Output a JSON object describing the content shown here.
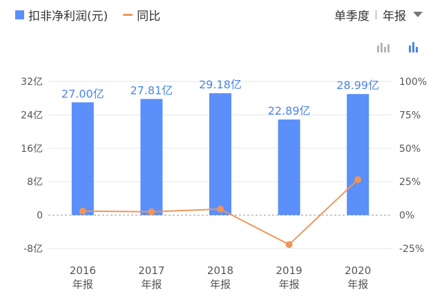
{
  "legend": {
    "bar_label": "扣非净利润(元)",
    "line_label": "同比"
  },
  "period": {
    "option_quarter": "单季度",
    "option_annual": "年报"
  },
  "icons": {
    "toggle_a": "bar-chart-outline-icon",
    "toggle_b": "bar-chart-icon",
    "dropdown": "caret-down-icon"
  },
  "colors": {
    "bar": "#5b8ff9",
    "line": "#f0955a",
    "label": "#4a84e8"
  },
  "chart_data": {
    "type": "bar",
    "categories": [
      "2016",
      "2017",
      "2018",
      "2019",
      "2020"
    ],
    "category_sublabel": "年报",
    "series": [
      {
        "name": "扣非净利润(元)",
        "type": "bar",
        "axis": "left",
        "values": [
          27.0,
          27.81,
          29.18,
          22.89,
          28.99
        ],
        "labels": [
          "27.00亿",
          "27.81亿",
          "29.18亿",
          "22.89亿",
          "28.99亿"
        ]
      },
      {
        "name": "同比",
        "type": "line",
        "axis": "right",
        "values": [
          3,
          2.5,
          4.5,
          -22,
          26.6
        ]
      }
    ],
    "y_left": {
      "ticks": [
        32,
        24,
        16,
        8,
        0,
        -8
      ],
      "tick_labels": [
        "32亿",
        "24亿",
        "16亿",
        "8亿",
        "0",
        "-8亿"
      ],
      "range": [
        -8,
        32
      ]
    },
    "y_right": {
      "ticks": [
        100,
        75,
        50,
        25,
        0,
        -25
      ],
      "tick_labels": [
        "100%",
        "75%",
        "50%",
        "25%",
        "0%",
        "-25%"
      ],
      "range": [
        -25,
        100
      ]
    },
    "grid": true
  }
}
